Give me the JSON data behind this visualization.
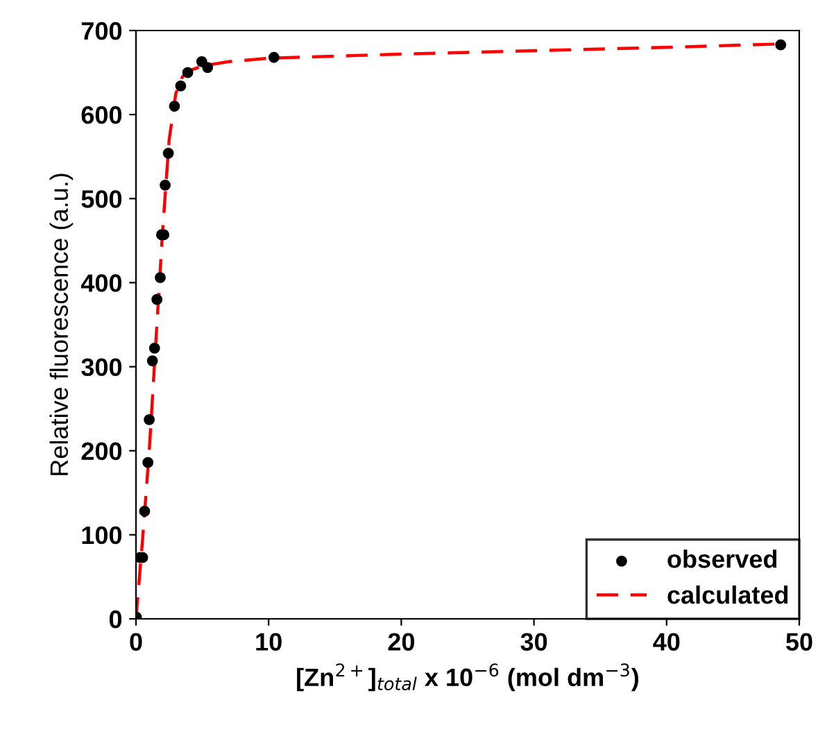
{
  "chart_data": {
    "type": "scatter",
    "xlabel": "[Zn$^{2+}$]$_{total}$ x 10$^{−6}$ (mol dm$^{−3}$)",
    "ylabel": "Relative fluorescence (a.u.)",
    "xlim": [
      0,
      50
    ],
    "ylim": [
      0,
      700
    ],
    "xticks": [
      0,
      10,
      20,
      30,
      40,
      50
    ],
    "yticks": [
      0,
      100,
      200,
      300,
      400,
      500,
      600,
      700
    ],
    "grid": false,
    "legend": "bottom right",
    "series": [
      {
        "name": "observed",
        "marker": "circle",
        "color": "#000000",
        "x": [
          0.03,
          0.3,
          0.5,
          0.65,
          0.9,
          1.0,
          1.24,
          1.4,
          1.58,
          1.83,
          1.93,
          2.1,
          2.2,
          2.44,
          2.9,
          3.37,
          3.9,
          4.96,
          5.4,
          10.4,
          48.6
        ],
        "values": [
          2,
          73,
          73,
          128,
          186,
          237,
          307,
          322,
          380,
          406,
          457,
          457,
          516,
          554,
          610,
          634,
          650,
          663,
          656,
          668,
          683
        ]
      },
      {
        "name": "calculated",
        "type": "line",
        "marker": "none",
        "line_style": "dashed",
        "color": "#ff0000",
        "x": [
          0,
          0.5,
          1,
          1.5,
          2,
          2.5,
          3,
          3.5,
          4,
          5,
          7,
          10,
          20,
          30,
          40,
          48.6
        ],
        "values": [
          0,
          95,
          200,
          330,
          460,
          570,
          625,
          645,
          652,
          658,
          663,
          667,
          672,
          676,
          680,
          684
        ]
      }
    ]
  }
}
